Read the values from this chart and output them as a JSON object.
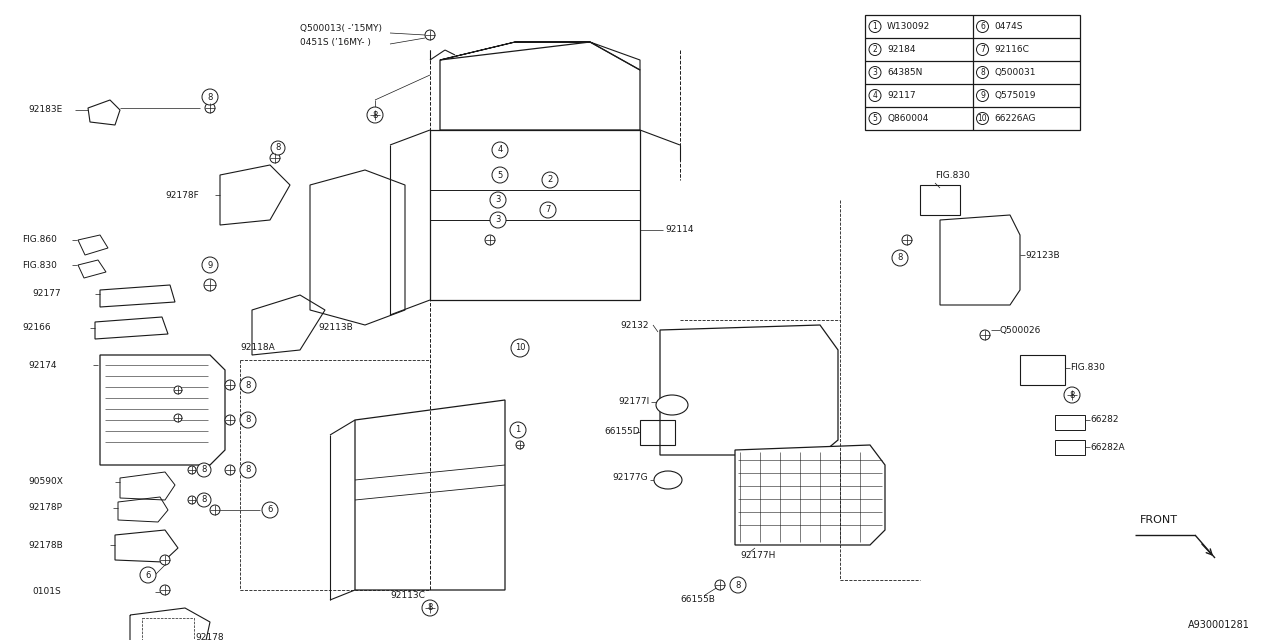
{
  "bg_color": "#f5f5f0",
  "line_color": "#1a1a1a",
  "fig_width": 12.8,
  "fig_height": 6.4,
  "dpi": 100,
  "parts_table": {
    "left": [
      {
        "num": "1",
        "code": "W130092"
      },
      {
        "num": "2",
        "code": "92184"
      },
      {
        "num": "3",
        "code": "64385N"
      },
      {
        "num": "4",
        "code": "92117"
      },
      {
        "num": "5",
        "code": "Q860004"
      }
    ],
    "right": [
      {
        "num": "6",
        "code": "0474S"
      },
      {
        "num": "7",
        "code": "92116C"
      },
      {
        "num": "8",
        "code": "Q500031"
      },
      {
        "num": "9",
        "code": "Q575019"
      },
      {
        "num": "10",
        "code": "66226AG"
      }
    ]
  },
  "diagram_id": "A930001281"
}
